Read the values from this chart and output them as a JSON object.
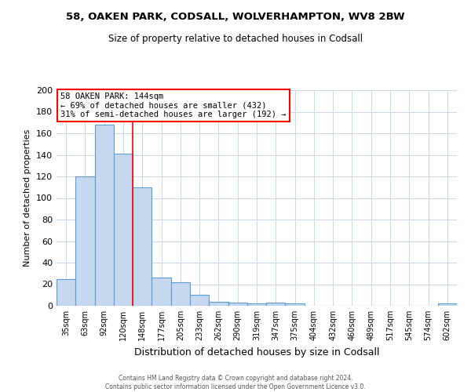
{
  "title": "58, OAKEN PARK, CODSALL, WOLVERHAMPTON, WV8 2BW",
  "subtitle": "Size of property relative to detached houses in Codsall",
  "xlabel": "Distribution of detached houses by size in Codsall",
  "ylabel": "Number of detached properties",
  "bar_labels": [
    "35sqm",
    "63sqm",
    "92sqm",
    "120sqm",
    "148sqm",
    "177sqm",
    "205sqm",
    "233sqm",
    "262sqm",
    "290sqm",
    "319sqm",
    "347sqm",
    "375sqm",
    "404sqm",
    "432sqm",
    "460sqm",
    "489sqm",
    "517sqm",
    "545sqm",
    "574sqm",
    "602sqm"
  ],
  "bar_values": [
    25,
    120,
    168,
    141,
    110,
    26,
    22,
    10,
    4,
    3,
    2,
    3,
    2,
    0,
    0,
    0,
    0,
    0,
    0,
    0,
    2
  ],
  "bar_color": "#c5d8f0",
  "bar_edge_color": "#5b9bd5",
  "red_line_index": 4,
  "ylim": [
    0,
    200
  ],
  "yticks": [
    0,
    20,
    40,
    60,
    80,
    100,
    120,
    140,
    160,
    180,
    200
  ],
  "annotation_title": "58 OAKEN PARK: 144sqm",
  "annotation_line1": "← 69% of detached houses are smaller (432)",
  "annotation_line2": "31% of semi-detached houses are larger (192) →",
  "footer_line1": "Contains HM Land Registry data © Crown copyright and database right 2024.",
  "footer_line2": "Contains public sector information licensed under the Open Government Licence v3.0.",
  "bg_color": "#ffffff",
  "grid_color": "#c8d8e8"
}
